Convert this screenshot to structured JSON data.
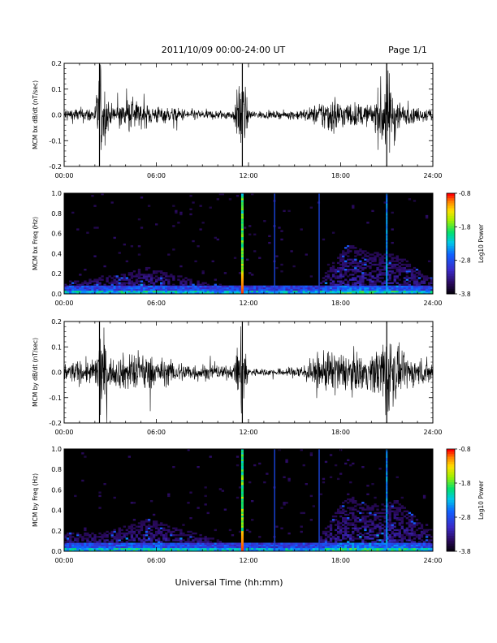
{
  "header": {
    "title": "2011/10/09  00:00-24:00 UT",
    "page": "Page 1/1"
  },
  "xaxis_label": "Universal Time (hh:mm)",
  "chart_data": [
    {
      "type": "line",
      "ylabel": "MCM bx dB/dt (nT/sec)",
      "xlim": [
        0,
        24
      ],
      "ylim": [
        -0.2,
        0.2
      ],
      "x_tick_labels": [
        "00:00",
        "06:00",
        "12:00",
        "18:00",
        "24:00"
      ],
      "y_tick_labels": [
        "0.2",
        "0.1",
        "0.0",
        "-0.1",
        "-0.2"
      ],
      "series": [
        {
          "x": [
            0,
            1,
            2,
            2.3,
            3,
            4,
            4.5,
            5,
            6,
            7,
            8,
            9,
            10,
            11,
            11.6,
            12,
            13,
            14,
            15,
            16,
            17,
            17.5,
            18,
            19,
            20,
            21,
            22,
            23,
            24
          ],
          "amplitude": [
            0.03,
            0.03,
            0.035,
            0.2,
            0.04,
            0.06,
            0.08,
            0.05,
            0.04,
            0.03,
            0.025,
            0.02,
            0.02,
            0.02,
            0.2,
            0.02,
            0.015,
            0.015,
            0.02,
            0.03,
            0.07,
            0.09,
            0.06,
            0.05,
            0.04,
            0.2,
            0.04,
            0.03,
            0.03
          ]
        }
      ],
      "spikes": [
        2.3,
        11.6,
        21.0
      ]
    },
    {
      "type": "heatmap",
      "ylabel": "MCM bx Freq (Hz)",
      "xlim": [
        0,
        24
      ],
      "ylim": [
        0,
        1.0
      ],
      "x_tick_labels": [
        "00:00",
        "06:00",
        "12:00",
        "18:00",
        "24:00"
      ],
      "y_tick_labels": [
        "1.0",
        "0.8",
        "0.6",
        "0.4",
        "0.2",
        "0.0"
      ],
      "colorbar_label": "Log10 Power",
      "colorbar_ticks": [
        "-0.8",
        "-1.8",
        "-2.8",
        "-3.8"
      ],
      "colorbar_range": [
        -3.8,
        -0.8
      ],
      "activity": [
        0.15,
        0.15,
        0.2,
        0.2,
        0.25,
        0.3,
        0.25,
        0.2,
        0.15,
        0.12,
        0.1,
        0.1,
        0.05,
        0.05,
        0.05,
        0.05,
        0.1,
        0.35,
        0.55,
        0.5,
        0.45,
        0.45,
        0.35,
        0.2
      ],
      "vertical_lines": [
        {
          "x": 11.6,
          "kind": "strong"
        },
        {
          "x": 13.7,
          "kind": "weak"
        },
        {
          "x": 16.6,
          "kind": "weak"
        },
        {
          "x": 21.0,
          "kind": "medium"
        }
      ]
    },
    {
      "type": "line",
      "ylabel": "MCM by dB/dt (nT/sec)",
      "xlim": [
        0,
        24
      ],
      "ylim": [
        -0.2,
        0.2
      ],
      "x_tick_labels": [
        "00:00",
        "06:00",
        "12:00",
        "18:00",
        "24:00"
      ],
      "y_tick_labels": [
        "0.2",
        "0.1",
        "0.0",
        "-0.1",
        "-0.2"
      ],
      "series": [
        {
          "x": [
            0,
            1,
            2,
            2.3,
            3,
            4,
            5,
            6,
            7,
            8,
            9,
            10,
            11,
            11.6,
            12,
            13,
            14,
            15,
            16,
            17,
            17.5,
            18,
            19,
            20,
            21,
            22,
            23,
            24
          ],
          "amplitude": [
            0.04,
            0.05,
            0.05,
            0.2,
            0.05,
            0.08,
            0.09,
            0.06,
            0.05,
            0.04,
            0.035,
            0.03,
            0.025,
            0.2,
            0.02,
            0.015,
            0.015,
            0.025,
            0.05,
            0.08,
            0.1,
            0.08,
            0.08,
            0.07,
            0.2,
            0.07,
            0.06,
            0.05
          ]
        }
      ],
      "spikes": [
        2.3,
        11.6,
        21.0
      ]
    },
    {
      "type": "heatmap",
      "ylabel": "MCM by Freq (Hz)",
      "xlim": [
        0,
        24
      ],
      "ylim": [
        0,
        1.0
      ],
      "x_tick_labels": [
        "00:00",
        "06:00",
        "12:00",
        "18:00",
        "24:00"
      ],
      "y_tick_labels": [
        "1.0",
        "0.8",
        "0.6",
        "0.4",
        "0.2",
        "0.0"
      ],
      "colorbar_label": "Log10 Power",
      "colorbar_ticks": [
        "-0.8",
        "-1.8",
        "-2.8",
        "-3.8"
      ],
      "colorbar_range": [
        -3.8,
        -0.8
      ],
      "activity": [
        0.2,
        0.2,
        0.2,
        0.25,
        0.3,
        0.35,
        0.3,
        0.25,
        0.2,
        0.15,
        0.1,
        0.1,
        0.05,
        0.05,
        0.05,
        0.05,
        0.1,
        0.4,
        0.6,
        0.55,
        0.5,
        0.55,
        0.45,
        0.25
      ],
      "vertical_lines": [
        {
          "x": 11.6,
          "kind": "strong"
        },
        {
          "x": 13.7,
          "kind": "weak"
        },
        {
          "x": 16.6,
          "kind": "weak"
        },
        {
          "x": 21.0,
          "kind": "medium"
        }
      ]
    }
  ]
}
